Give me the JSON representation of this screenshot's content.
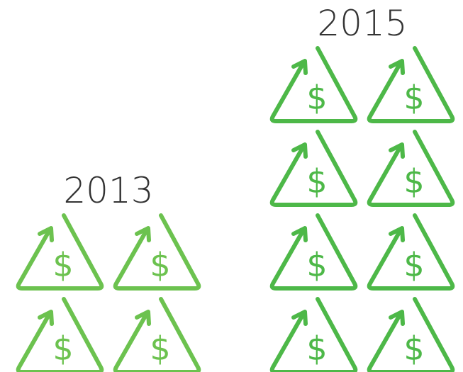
{
  "chart_data": {
    "type": "pictogram",
    "categories": [
      "2013",
      "2015"
    ],
    "values": [
      4,
      8
    ],
    "colors": [
      "#6cc24f",
      "#4db848"
    ],
    "symbol": "$"
  }
}
